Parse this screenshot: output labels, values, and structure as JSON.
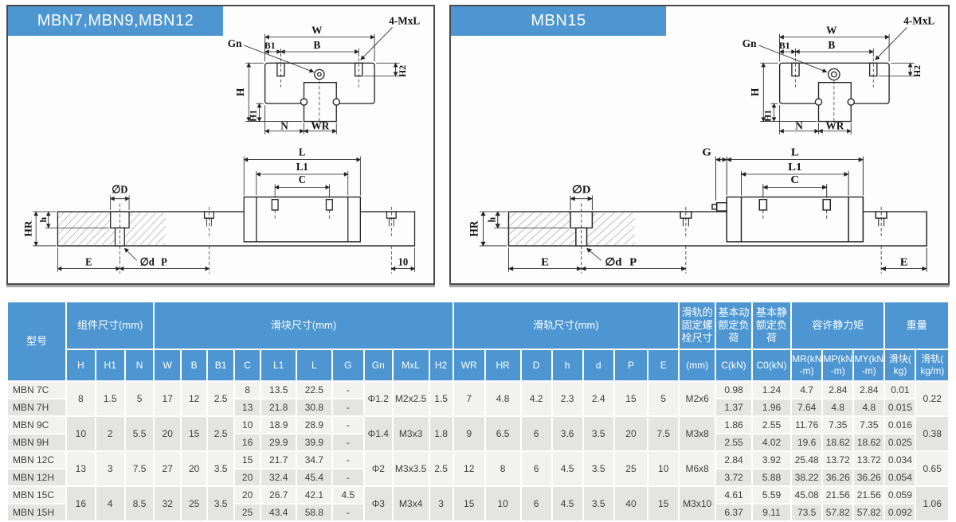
{
  "colors": {
    "accent_blue": "#4d96d2",
    "panel_border": "#4a4a4a",
    "cell_light": "#f2f2f1",
    "cell_dark": "#e4e4e3",
    "header_text": "#ffffff",
    "body_text": "#3f3f3f"
  },
  "panels": [
    {
      "title": "MBN7,MBN9,MBN12",
      "cs": {
        "W": "W",
        "B": "B",
        "B1": "B1",
        "Gn": "Gn",
        "bolt": "4-MxL",
        "H": "H",
        "H1": "H1",
        "H2": "H2",
        "N": "N",
        "WR": "WR"
      },
      "sv": {
        "L": "L",
        "L1": "L1",
        "C": "C",
        "dD": "∅D",
        "dd": "∅d",
        "HR": "HR",
        "h": "h",
        "E": "E",
        "P": "P",
        "end": "10"
      }
    },
    {
      "title": "MBN15",
      "cs": {
        "W": "W",
        "B": "B",
        "B1": "B1",
        "Gn": "Gn",
        "bolt": "4-MxL",
        "H": "H",
        "H1": "H1",
        "H2": "H2",
        "N": "N",
        "WR": "WR"
      },
      "sv": {
        "G": "G",
        "L": "L",
        "L1": "L1",
        "C": "C",
        "dD": "∅D",
        "dd": "∅d",
        "HR": "HR",
        "h": "h",
        "E": "E",
        "P": "P",
        "end": "E"
      }
    }
  ],
  "table": {
    "header_groups": [
      {
        "label": "型号"
      },
      {
        "label": "组件尺寸(mm)"
      },
      {
        "label": "滑块尺寸(mm)"
      },
      {
        "label": "滑轨尺寸(mm)"
      },
      {
        "label": "滑轨的\n固定螺\n栓尺寸"
      },
      {
        "label": "基本动\n额定负\n荷"
      },
      {
        "label": "基本静\n额定负\n荷"
      },
      {
        "label": "容许静力矩"
      },
      {
        "label": "重量"
      }
    ],
    "sub_headers": [
      "H",
      "H1",
      "N",
      "W",
      "B",
      "B1",
      "C",
      "L1",
      "L",
      "G",
      "Gn",
      "MxL",
      "H2",
      "WR",
      "HR",
      "D",
      "h",
      "d",
      "P",
      "E",
      "(mm)",
      "C(kN)",
      "C0(kN)",
      "MR(kN\n-m)",
      "MP(kN\n-m)",
      "MY(kN\n-m)",
      "滑块(\nkg)",
      "滑轨(\nkg/m)"
    ],
    "pairs": [
      {
        "H": "8",
        "H1": "1.5",
        "N": "5",
        "W": "17",
        "B": "12",
        "B1": "2.5",
        "Gn": "Φ1.2",
        "MxL": "M2x2.5",
        "H2": "1.5",
        "WR": "7",
        "HR": "4.8",
        "D": "4.2",
        "h": "2.3",
        "d": "2.4",
        "P": "15",
        "E": "5",
        "bolt": "M2x6",
        "rail": "0.22",
        "rows": [
          {
            "model": "MBN 7C",
            "C": "8",
            "L1": "13.5",
            "L": "22.5",
            "G": "-",
            "C_kN": "0.98",
            "C0_kN": "1.24",
            "MR": "4.7",
            "MP": "2.84",
            "MY": "2.84",
            "block_kg": "0.01"
          },
          {
            "model": "MBN 7H",
            "C": "13",
            "L1": "21.8",
            "L": "30.8",
            "G": "-",
            "C_kN": "1.37",
            "C0_kN": "1.96",
            "MR": "7.64",
            "MP": "4.8",
            "MY": "4.8",
            "block_kg": "0.015"
          }
        ]
      },
      {
        "H": "10",
        "H1": "2",
        "N": "5.5",
        "W": "20",
        "B": "15",
        "B1": "2.5",
        "Gn": "Φ1.4",
        "MxL": "M3x3",
        "H2": "1.8",
        "WR": "9",
        "HR": "6.5",
        "D": "6",
        "h": "3.6",
        "d": "3.5",
        "P": "20",
        "E": "7.5",
        "bolt": "M3x8",
        "rail": "0.38",
        "rows": [
          {
            "model": "MBN 9C",
            "C": "10",
            "L1": "18.9",
            "L": "28.9",
            "G": "-",
            "C_kN": "1.86",
            "C0_kN": "2.55",
            "MR": "11.76",
            "MP": "7.35",
            "MY": "7.35",
            "block_kg": "0.016"
          },
          {
            "model": "MBN 9H",
            "C": "16",
            "L1": "29.9",
            "L": "39.9",
            "G": "-",
            "C_kN": "2.55",
            "C0_kN": "4.02",
            "MR": "19.6",
            "MP": "18.62",
            "MY": "18.62",
            "block_kg": "0.025"
          }
        ]
      },
      {
        "H": "13",
        "H1": "3",
        "N": "7.5",
        "W": "27",
        "B": "20",
        "B1": "3.5",
        "Gn": "Φ2",
        "MxL": "M3x3.5",
        "H2": "2.5",
        "WR": "12",
        "HR": "8",
        "D": "6",
        "h": "4.5",
        "d": "3.5",
        "P": "25",
        "E": "10",
        "bolt": "M6x8",
        "rail": "0.65",
        "rows": [
          {
            "model": "MBN 12C",
            "C": "15",
            "L1": "21.7",
            "L": "34.7",
            "G": "-",
            "C_kN": "2.84",
            "C0_kN": "3.92",
            "MR": "25.48",
            "MP": "13.72",
            "MY": "13.72",
            "block_kg": "0.034"
          },
          {
            "model": "MBN 12H",
            "C": "20",
            "L1": "32.4",
            "L": "45.4",
            "G": "-",
            "C_kN": "3.72",
            "C0_kN": "5.88",
            "MR": "38.22",
            "MP": "36.26",
            "MY": "36.26",
            "block_kg": "0.054"
          }
        ]
      },
      {
        "H": "16",
        "H1": "4",
        "N": "8.5",
        "W": "32",
        "B": "25",
        "B1": "3.5",
        "Gn": "Φ3",
        "MxL": "M3x4",
        "H2": "3",
        "WR": "15",
        "HR": "10",
        "D": "6",
        "h": "4.5",
        "d": "3.5",
        "P": "40",
        "E": "15",
        "bolt": "M3x10",
        "rail": "1.06",
        "rows": [
          {
            "model": "MBN 15C",
            "C": "20",
            "L1": "26.7",
            "L": "42.1",
            "G": "4.5",
            "C_kN": "4.61",
            "C0_kN": "5.59",
            "MR": "45.08",
            "MP": "21.56",
            "MY": "21.56",
            "block_kg": "0.059"
          },
          {
            "model": "MBN 15H",
            "C": "25",
            "L1": "43.4",
            "L": "58.8",
            "G": "-",
            "C_kN": "6.37",
            "C0_kN": "9.11",
            "MR": "73.5",
            "MP": "57.82",
            "MY": "57.82",
            "block_kg": "0.092"
          }
        ]
      }
    ]
  }
}
